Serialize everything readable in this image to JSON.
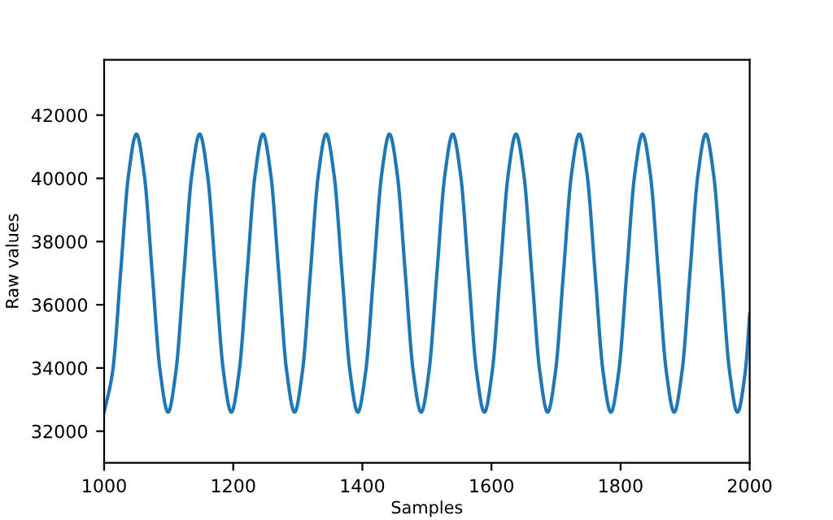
{
  "chart_data": {
    "type": "line",
    "xlabel": "Samples",
    "ylabel": "Raw values",
    "xlim": [
      1000,
      2000
    ],
    "xticks": [
      1000,
      1200,
      1400,
      1600,
      1800,
      2000
    ],
    "ylim": [
      31000,
      43750
    ],
    "yticks": [
      32000,
      34000,
      36000,
      38000,
      40000,
      42000
    ],
    "grid": false,
    "legend": false,
    "marker": "none",
    "line_style": "solid",
    "series": [
      {
        "color": "#1f77b4",
        "x": [
          1000,
          1013.25,
          1025.5,
          1037.75,
          1050,
          1062.25,
          1074.5,
          1086.75,
          1099,
          1111.25,
          1123.5,
          1135.75,
          1148,
          1160.25,
          1172.5,
          1184.75,
          1197,
          1209.25,
          1221.5,
          1233.75,
          1246,
          1258.25,
          1270.5,
          1282.75,
          1295,
          1307.25,
          1319.5,
          1331.75,
          1344,
          1356.25,
          1368.5,
          1380.75,
          1393,
          1405.25,
          1417.5,
          1429.75,
          1442,
          1454.25,
          1466.5,
          1478.75,
          1491,
          1503.25,
          1515.5,
          1527.75,
          1540,
          1552.25,
          1564.5,
          1576.75,
          1589,
          1601.25,
          1613.5,
          1625.75,
          1638,
          1650.25,
          1662.5,
          1674.75,
          1687,
          1699.25,
          1711.5,
          1723.75,
          1736,
          1748.25,
          1760.5,
          1772.75,
          1785,
          1797.25,
          1809.5,
          1821.75,
          1834,
          1846.25,
          1858.5,
          1870.75,
          1883,
          1895.25,
          1907.5,
          1919.75,
          1932,
          1944.25,
          1956.5,
          1968.75,
          1981,
          1993.25,
          2000
        ],
        "values": [
          32600,
          33900,
          37000,
          40100,
          41400,
          40100,
          37000,
          33900,
          32600,
          33900,
          37000,
          40100,
          41400,
          40100,
          37000,
          33900,
          32600,
          33900,
          37000,
          40100,
          41400,
          40100,
          37000,
          33900,
          32600,
          33900,
          37000,
          40100,
          41400,
          40100,
          37000,
          33900,
          32600,
          33900,
          37000,
          40100,
          41400,
          40100,
          37000,
          33900,
          32600,
          33900,
          37000,
          40100,
          41400,
          40100,
          37000,
          33900,
          32600,
          33900,
          37000,
          40100,
          41400,
          40100,
          37000,
          33900,
          32600,
          33900,
          37000,
          40100,
          41400,
          40100,
          37000,
          33900,
          32600,
          33900,
          37000,
          40100,
          41400,
          40100,
          37000,
          33900,
          32600,
          33900,
          37000,
          40100,
          41400,
          40100,
          37000,
          33900,
          32600,
          33900,
          35700
        ]
      }
    ]
  }
}
